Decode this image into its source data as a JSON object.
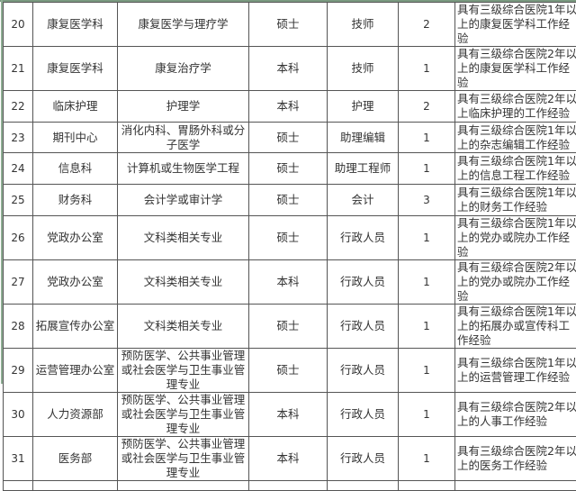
{
  "table": {
    "rows": [
      {
        "no": "20",
        "dept": "康复医学科",
        "major": "康复医学与理疗学",
        "edu": "硕士",
        "post": "技师",
        "count": "2",
        "req": "具有三级综合医院1年以上的康复医学科工作经验"
      },
      {
        "no": "21",
        "dept": "康复医学科",
        "major": "康复治疗学",
        "edu": "本科",
        "post": "技师",
        "count": "1",
        "req": "具有三级综合医院2年以上的康复医学科工作经验"
      },
      {
        "no": "22",
        "dept": "临床护理",
        "major": "护理学",
        "edu": "本科",
        "post": "护理",
        "count": "2",
        "req": "具有三级综合医院2年以上临床护理的工作经验"
      },
      {
        "no": "23",
        "dept": "期刊中心",
        "major": "消化内科、胃肠外科或分子医学",
        "edu": "硕士",
        "post": "助理编辑",
        "count": "1",
        "req": "具有三级综合医院1年以上的杂志编辑工作经验"
      },
      {
        "no": "24",
        "dept": "信息科",
        "major": "计算机或生物医学工程",
        "edu": "硕士",
        "post": "助理工程师",
        "count": "1",
        "req": "具有三级综合医院1年以上的信息工程工作经验"
      },
      {
        "no": "25",
        "dept": "财务科",
        "major": "会计学或审计学",
        "edu": "硕士",
        "post": "会计",
        "count": "3",
        "req": "具有三级综合医院1年以上的财务工作经验"
      },
      {
        "no": "26",
        "dept": "党政办公室",
        "major": "文科类相关专业",
        "edu": "硕士",
        "post": "行政人员",
        "count": "1",
        "req": "具有三级综合医院1年以上的党办或院办工作经验"
      },
      {
        "no": "27",
        "dept": "党政办公室",
        "major": "文科类相关专业",
        "edu": "本科",
        "post": "行政人员",
        "count": "1",
        "req": "具有三级综合医院2年以上的党办或院办工作经验"
      },
      {
        "no": "28",
        "dept": "拓展宣传办公室",
        "major": "文科类相关专业",
        "edu": "硕士",
        "post": "行政人员",
        "count": "1",
        "req": "具有三级综合医院1年以上的拓展办或宣传科工作经验"
      },
      {
        "no": "29",
        "dept": "运营管理办公室",
        "major": "预防医学、公共事业管理或社会医学与卫生事业管理专业",
        "edu": "硕士",
        "post": "行政人员",
        "count": "1",
        "req": "具有三级综合医院1年以上的运营管理工作经验"
      },
      {
        "no": "30",
        "dept": "人力资源部",
        "major": "预防医学、公共事业管理或社会医学与卫生事业管理专业",
        "edu": "本科",
        "post": "行政人员",
        "count": "1",
        "req": "具有三级综合医院2年以上的人事工作经验"
      },
      {
        "no": "31",
        "dept": "医务部",
        "major": "预防医学、公共事业管理或社会医学与卫生事业管理专业",
        "edu": "本科",
        "post": "行政人员",
        "count": "1",
        "req": "具有三级综合医院2年以上的医务工作经验"
      }
    ]
  }
}
